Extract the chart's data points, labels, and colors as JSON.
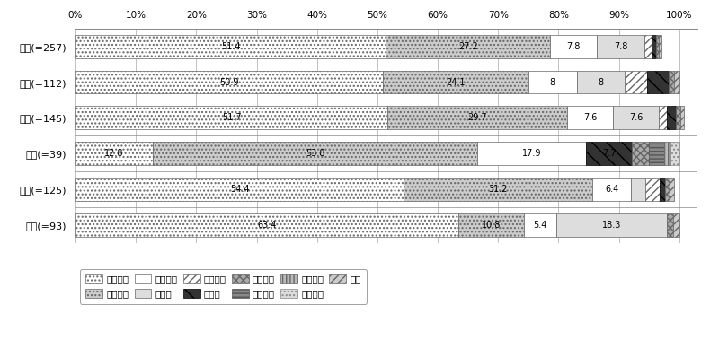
{
  "rows": [
    {
      "label": "全体(=257)",
      "values": [
        51.4,
        27.2,
        7.8,
        7.8,
        1.2,
        0.8,
        0.4,
        0.0,
        0.0,
        0.0,
        0.4
      ]
    },
    {
      "label": "男性(=112)",
      "values": [
        50.9,
        24.1,
        8.0,
        8.0,
        3.6,
        3.6,
        0.9,
        0.0,
        0.0,
        0.0,
        0.9
      ]
    },
    {
      "label": "女性(=145)",
      "values": [
        51.7,
        29.7,
        7.6,
        7.6,
        1.4,
        1.4,
        0.7,
        0.0,
        0.0,
        0.0,
        0.7
      ]
    },
    {
      "label": "老年(=39)",
      "values": [
        12.8,
        53.8,
        17.9,
        0.0,
        0.0,
        7.7,
        2.8,
        2.5,
        1.1,
        1.4,
        0.0
      ]
    },
    {
      "label": "壮年(=125)",
      "values": [
        54.4,
        31.2,
        6.4,
        2.4,
        2.4,
        0.8,
        0.8,
        0.0,
        0.0,
        0.0,
        0.8
      ]
    },
    {
      "label": "若年(=93)",
      "values": [
        63.4,
        10.8,
        5.4,
        18.3,
        0.0,
        0.0,
        1.1,
        0.0,
        0.0,
        0.0,
        1.0
      ]
    }
  ],
  "legend_labels": [
    "ミーヒン",
    "ミヤヘン",
    "ミーヘン",
    "ミヤン",
    "メーヘン",
    "ミラン",
    "ミラヘン",
    "ミテヘン",
    "ミヤヒン",
    "ミレヘン",
    "ミン"
  ],
  "text_show_min": 4.5,
  "xlim": [
    0,
    103
  ],
  "background_color": "#ffffff"
}
